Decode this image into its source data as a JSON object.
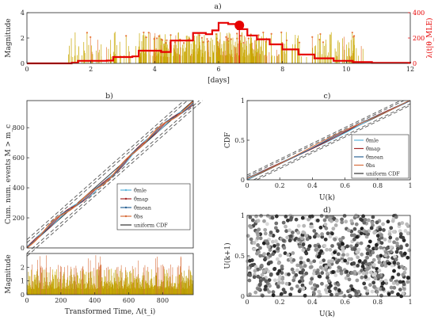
{
  "chart_data": [
    {
      "id": "a",
      "type": "bar",
      "title": "a)",
      "xlabel": "[days]",
      "ylabel": "Magnitude",
      "ylabel_right": "λ(t|θ_MLE)",
      "xlim": [
        0,
        12
      ],
      "ylim": [
        0,
        4
      ],
      "ylim_right": [
        0,
        400
      ],
      "xticks": [
        "0",
        "2",
        "4",
        "6",
        "8",
        "10",
        "12"
      ],
      "yticks": [
        "0",
        "2",
        "4"
      ],
      "yticks_right": [
        "0",
        "200",
        "400"
      ],
      "events": {
        "t_start": 1.3,
        "t_end": 10.6,
        "magnitude_range": [
          0.5,
          2.5
        ],
        "largest_event": {
          "t": 6.65,
          "magnitude": 3.0
        }
      },
      "intensity": {
        "t": [
          0,
          1.4,
          1.6,
          2.5,
          2.7,
          3.3,
          3.5,
          4.2,
          4.5,
          4.7,
          4.9,
          5.2,
          5.6,
          5.8,
          6.0,
          6.3,
          6.6,
          6.9,
          7.2,
          7.6,
          8.0,
          8.5,
          9.0,
          9.6,
          10.2,
          10.8,
          12
        ],
        "values": [
          0,
          5,
          20,
          22,
          50,
          55,
          100,
          90,
          180,
          180,
          180,
          240,
          230,
          260,
          320,
          310,
          270,
          220,
          190,
          150,
          110,
          70,
          40,
          20,
          10,
          4,
          0
        ]
      },
      "colors": {
        "events": "#c8a800",
        "stems": "#e8783c",
        "intensity": "#e60000"
      }
    },
    {
      "id": "b",
      "type": "line",
      "title": "b)",
      "ylabel": "Cum. num. events M > m_c",
      "xlim": [
        0,
        980
      ],
      "ylim": [
        0,
        980
      ],
      "xticks": [
        "0",
        "200",
        "400",
        "600",
        "800"
      ],
      "yticks": [
        "0",
        "200",
        "400",
        "600",
        "800"
      ],
      "series": [
        {
          "name": "θ̂mle",
          "color": "#5ab4dc"
        },
        {
          "name": "θ̂map",
          "color": "#a52a2a"
        },
        {
          "name": "θ̂mean",
          "color": "#2d6496"
        },
        {
          "name": "θ̂bs",
          "color": "#d86e3c"
        },
        {
          "name": "uniform CDF",
          "color": "#333333"
        }
      ]
    },
    {
      "id": "b-bottom",
      "type": "bar",
      "xlabel": "Transformed Time, Λ(t_i)",
      "ylabel": "Magnitude",
      "xlim": [
        0,
        980
      ],
      "ylim": [
        0,
        3
      ],
      "xticks": [
        "0",
        "200",
        "400",
        "600",
        "800"
      ],
      "yticks": [
        "0",
        "1",
        "2"
      ]
    },
    {
      "id": "c",
      "type": "line",
      "title": "c)",
      "xlabel": "U(k)",
      "ylabel": "CDF",
      "xlim": [
        0,
        1
      ],
      "ylim": [
        0,
        1
      ],
      "xticks": [
        "0",
        "0.2",
        "0.4",
        "0.6",
        "0.8",
        "1"
      ],
      "yticks": [
        "0",
        "0.5",
        "1"
      ],
      "series": [
        {
          "name": "θ̂mle",
          "color": "#5ab4dc"
        },
        {
          "name": "θ̂map",
          "color": "#a52a2a"
        },
        {
          "name": "θ̂mean",
          "color": "#2d6496"
        },
        {
          "name": "θ̂bs",
          "color": "#d86e3c"
        },
        {
          "name": "uniform CDF",
          "color": "#333333"
        }
      ]
    },
    {
      "id": "d",
      "type": "scatter",
      "title": "d)",
      "xlabel": "U(k)",
      "ylabel": "U(k+1)",
      "xlim": [
        0,
        1
      ],
      "ylim": [
        0,
        1
      ],
      "xticks": [
        "0",
        "0.2",
        "0.4",
        "0.6",
        "0.8",
        "1"
      ],
      "yticks": [
        "0",
        "0.5",
        "1"
      ]
    }
  ]
}
